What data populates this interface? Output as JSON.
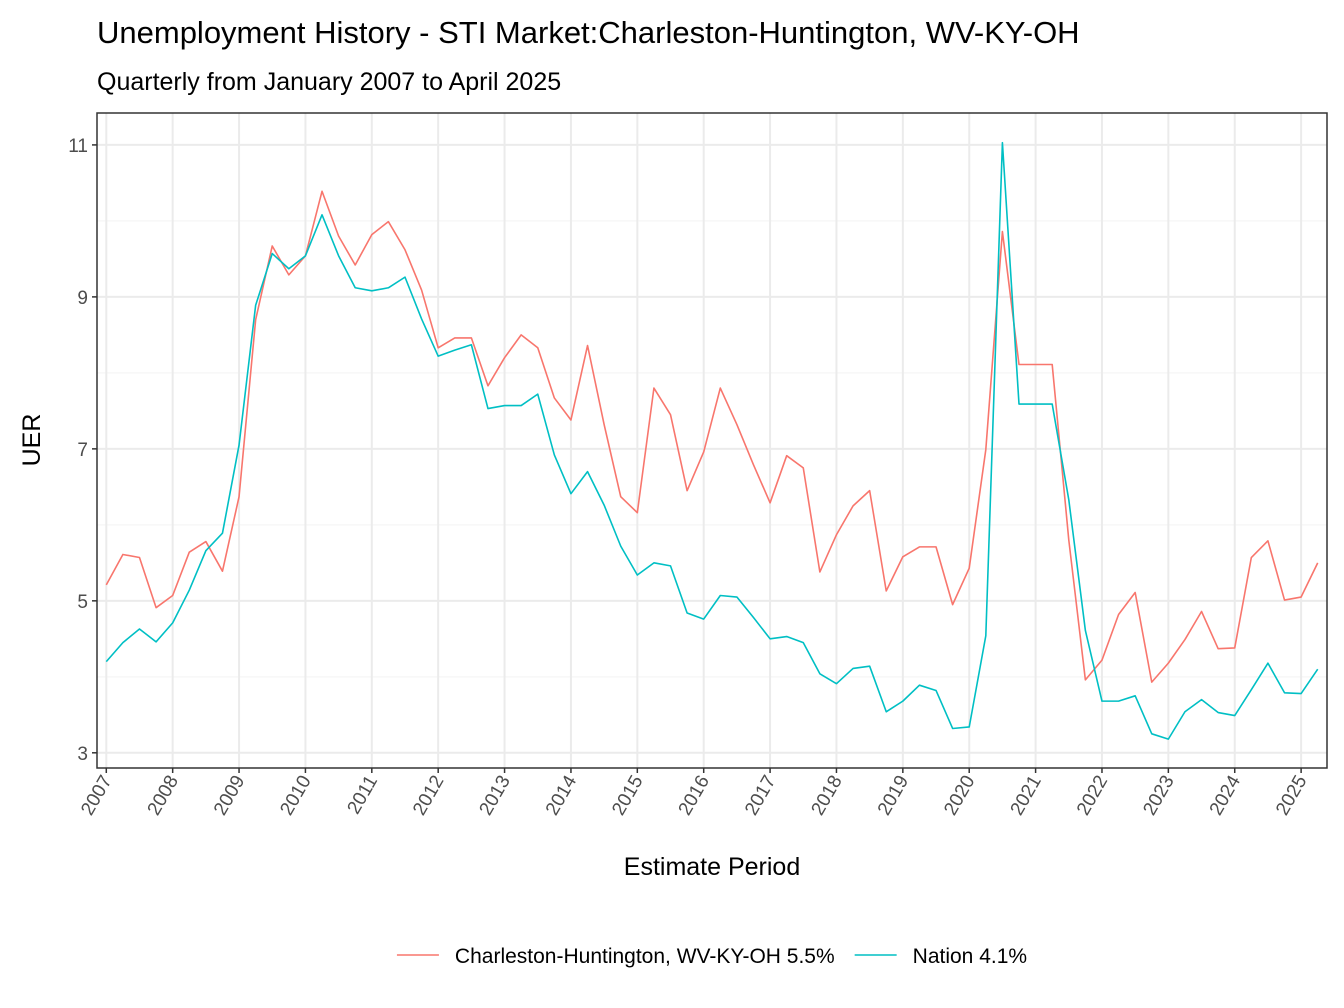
{
  "chart_data": {
    "type": "line",
    "title": "Unemployment History - STI Market:Charleston-Huntington, WV-KY-OH",
    "subtitle": "Quarterly from January 2007 to April 2025",
    "x_label": "Estimate Period",
    "y_label": "UER",
    "x": [
      2007,
      2007.25,
      2007.5,
      2007.75,
      2008,
      2008.25,
      2008.5,
      2008.75,
      2009,
      2009.25,
      2009.5,
      2009.75,
      2010,
      2010.25,
      2010.5,
      2010.75,
      2011,
      2011.25,
      2011.5,
      2011.75,
      2012,
      2012.25,
      2012.5,
      2012.75,
      2013,
      2013.25,
      2013.5,
      2013.75,
      2014,
      2014.25,
      2014.5,
      2014.75,
      2015,
      2015.25,
      2015.5,
      2015.75,
      2016,
      2016.25,
      2016.5,
      2016.75,
      2017,
      2017.25,
      2017.5,
      2017.75,
      2018,
      2018.25,
      2018.5,
      2018.75,
      2019,
      2019.25,
      2019.5,
      2019.75,
      2020,
      2020.25,
      2020.5,
      2020.75,
      2021,
      2021.25,
      2021.5,
      2021.75,
      2022,
      2022.25,
      2022.5,
      2022.75,
      2023,
      2023.25,
      2023.5,
      2023.75,
      2024,
      2024.25,
      2024.5,
      2024.75,
      2025,
      2025.25
    ],
    "series": [
      {
        "name": "Charleston-Huntington, WV-KY-OH 5.5%",
        "color": "#F8766D",
        "values": [
          5.21,
          5.61,
          5.57,
          4.91,
          5.07,
          5.64,
          5.78,
          5.39,
          6.37,
          8.7,
          9.67,
          9.29,
          9.54,
          10.39,
          9.8,
          9.42,
          9.82,
          9.99,
          9.62,
          9.09,
          8.33,
          8.46,
          8.46,
          7.83,
          8.2,
          8.5,
          8.33,
          7.67,
          7.38,
          8.36,
          7.32,
          6.37,
          6.16,
          7.8,
          7.45,
          6.45,
          6.96,
          7.8,
          7.32,
          6.79,
          6.29,
          6.91,
          6.75,
          5.38,
          5.87,
          6.25,
          6.45,
          5.13,
          5.58,
          5.71,
          5.71,
          4.95,
          5.43,
          6.99,
          9.86,
          8.11,
          8.11,
          8.11,
          5.8,
          3.96,
          4.22,
          4.82,
          5.11,
          3.93,
          4.18,
          4.49,
          4.86,
          4.37,
          4.38,
          5.57,
          5.79,
          5.01,
          5.05,
          5.5
        ]
      },
      {
        "name": "Nation 4.1%",
        "color": "#00BFC4",
        "values": [
          4.2,
          4.45,
          4.63,
          4.46,
          4.71,
          5.14,
          5.66,
          5.89,
          7.05,
          8.89,
          9.57,
          9.37,
          9.54,
          10.08,
          9.54,
          9.12,
          9.08,
          9.12,
          9.26,
          8.71,
          8.22,
          8.3,
          8.37,
          7.53,
          7.57,
          7.57,
          7.72,
          6.92,
          6.41,
          6.7,
          6.26,
          5.72,
          5.34,
          5.5,
          5.46,
          4.84,
          4.76,
          5.07,
          5.05,
          4.78,
          4.5,
          4.53,
          4.45,
          4.04,
          3.91,
          4.11,
          4.14,
          3.54,
          3.68,
          3.89,
          3.82,
          3.32,
          3.34,
          4.54,
          11.03,
          7.59,
          7.59,
          7.59,
          6.33,
          4.61,
          3.68,
          3.68,
          3.75,
          3.25,
          3.18,
          3.54,
          3.7,
          3.53,
          3.49,
          3.83,
          4.18,
          3.79,
          3.78,
          4.1
        ]
      }
    ],
    "xlim": [
      2006.86,
      2025.39
    ],
    "xticks": [
      2007,
      2008,
      2009,
      2010,
      2011,
      2012,
      2013,
      2014,
      2015,
      2016,
      2017,
      2018,
      2019,
      2020,
      2021,
      2022,
      2023,
      2024,
      2025
    ],
    "ylim": [
      2.8,
      11.42
    ],
    "yticks": [
      3,
      5,
      7,
      9,
      11
    ],
    "y_minor_grid": [
      4,
      6,
      8,
      10
    ],
    "grid": true,
    "legend": "bottom"
  }
}
